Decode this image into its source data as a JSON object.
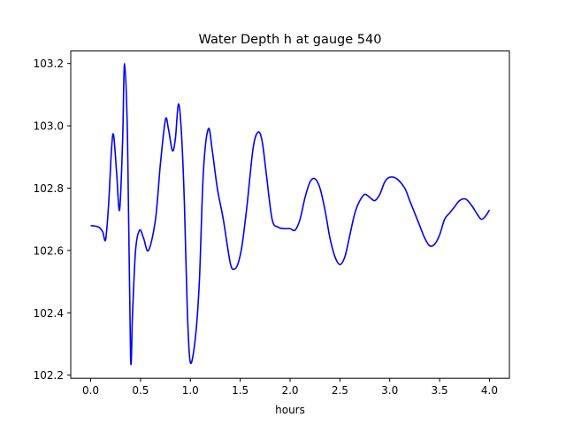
{
  "chart_data": {
    "type": "line",
    "title": "Water Depth h at gauge 540",
    "xlabel": "hours",
    "ylabel": "",
    "xlim": [
      -0.2,
      4.2
    ],
    "ylim": [
      102.19,
      103.24
    ],
    "grid": false,
    "x_ticks": [
      0.0,
      0.5,
      1.0,
      1.5,
      2.0,
      2.5,
      3.0,
      3.5,
      4.0
    ],
    "x_tick_labels": [
      "0.0",
      "0.5",
      "1.0",
      "1.5",
      "2.0",
      "2.5",
      "3.0",
      "3.5",
      "4.0"
    ],
    "y_ticks": [
      102.2,
      102.4,
      102.6,
      102.8,
      103.0,
      103.2
    ],
    "y_tick_labels": [
      "102.2",
      "102.4",
      "102.6",
      "102.8",
      "103.0",
      "103.2"
    ],
    "series": [
      {
        "color": "#0000ff",
        "x": [
          0.0,
          0.08,
          0.12,
          0.15,
          0.18,
          0.21,
          0.23,
          0.26,
          0.29,
          0.32,
          0.34,
          0.37,
          0.4,
          0.42,
          0.45,
          0.49,
          0.53,
          0.58,
          0.65,
          0.7,
          0.75,
          0.78,
          0.82,
          0.85,
          0.88,
          0.91,
          0.94,
          0.97,
          1.0,
          1.05,
          1.09,
          1.13,
          1.18,
          1.22,
          1.27,
          1.33,
          1.4,
          1.44,
          1.48,
          1.52,
          1.57,
          1.63,
          1.68,
          1.72,
          1.76,
          1.82,
          1.88,
          1.94,
          2.0,
          2.05,
          2.1,
          2.15,
          2.2,
          2.25,
          2.3,
          2.35,
          2.4,
          2.45,
          2.5,
          2.55,
          2.6,
          2.65,
          2.7,
          2.75,
          2.8,
          2.85,
          2.9,
          2.95,
          3.0,
          3.07,
          3.15,
          3.2,
          3.25,
          3.3,
          3.35,
          3.4,
          3.45,
          3.5,
          3.55,
          3.6,
          3.65,
          3.7,
          3.76,
          3.82,
          3.88,
          3.92,
          3.96,
          4.0
        ],
        "y": [
          102.68,
          102.675,
          102.66,
          102.635,
          102.75,
          102.93,
          102.97,
          102.85,
          102.73,
          102.95,
          103.2,
          102.95,
          102.26,
          102.4,
          102.6,
          102.665,
          102.64,
          102.6,
          102.7,
          102.88,
          103.02,
          102.99,
          102.92,
          102.96,
          103.07,
          102.98,
          102.75,
          102.4,
          102.24,
          102.32,
          102.5,
          102.85,
          102.99,
          102.92,
          102.8,
          102.7,
          102.56,
          102.54,
          102.56,
          102.62,
          102.75,
          102.93,
          102.98,
          102.95,
          102.85,
          102.7,
          102.675,
          102.67,
          102.67,
          102.665,
          102.7,
          102.77,
          102.82,
          102.83,
          102.8,
          102.73,
          102.64,
          102.58,
          102.555,
          102.58,
          102.65,
          102.72,
          102.76,
          102.78,
          102.77,
          102.76,
          102.78,
          102.82,
          102.835,
          102.83,
          102.8,
          102.76,
          102.72,
          102.68,
          102.64,
          102.615,
          102.62,
          102.65,
          102.7,
          102.72,
          102.74,
          102.76,
          102.765,
          102.745,
          102.715,
          102.7,
          102.71,
          102.73
        ]
      }
    ]
  }
}
